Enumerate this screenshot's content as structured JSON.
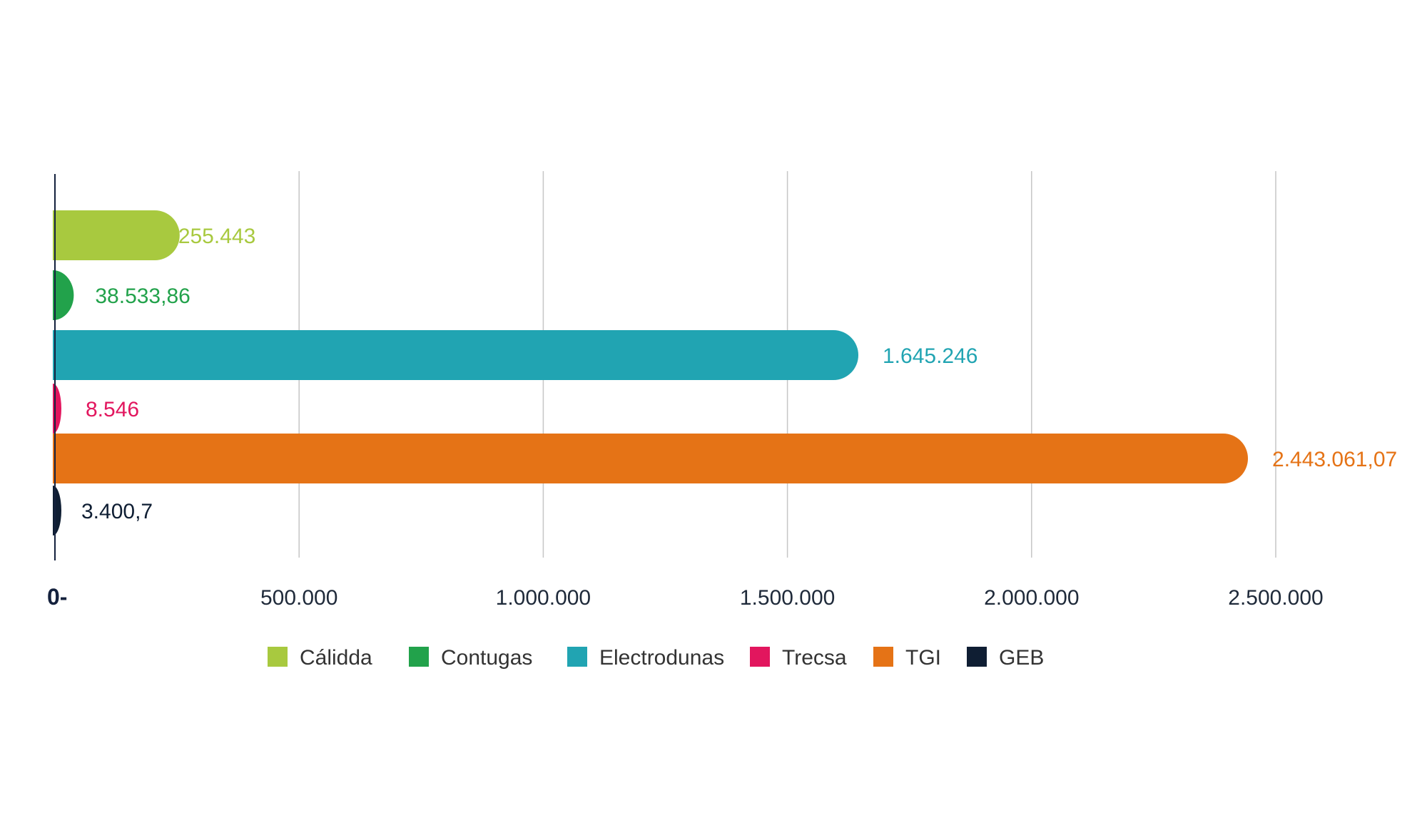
{
  "chart_data": {
    "type": "bar",
    "orientation": "horizontal",
    "categories": [
      "Cálidda",
      "Contugas",
      "Electrodunas",
      "Trecsa",
      "TGI",
      "GEB"
    ],
    "values": [
      255443,
      38533.86,
      1645246,
      8546,
      2443061.07,
      3400.7
    ],
    "value_labels": [
      "255.443",
      "38.533,86",
      "1.645.246",
      "8.546",
      "2.443.061,07",
      "3.400,7"
    ],
    "colors": [
      "#a8c93f",
      "#22a24b",
      "#21a4b2",
      "#e2165e",
      "#e57316",
      "#0f1e33"
    ],
    "xlim": [
      0,
      2500000
    ],
    "x_ticks": [
      0,
      500000,
      1000000,
      1500000,
      2000000,
      2500000
    ],
    "x_tick_labels": [
      "0-",
      "500.000",
      "1.000.000",
      "1.500.000",
      "2.000.000",
      "2.500.000"
    ],
    "grid": true,
    "legend": {
      "placement": "bottom",
      "entries": [
        "Cálidda",
        "Contugas",
        "Electrodunas",
        "Trecsa",
        "TGI",
        "GEB"
      ]
    }
  }
}
